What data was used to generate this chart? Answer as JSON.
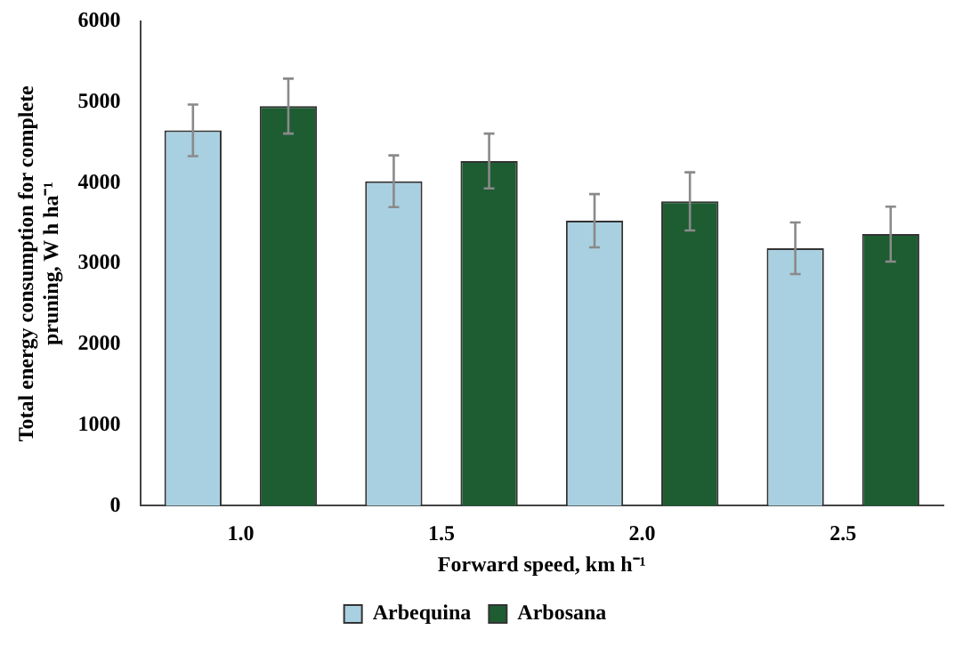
{
  "chart_data": {
    "type": "bar",
    "xlabel": "Forward speed, km h⁻¹",
    "ylabel": "Total energy consumption for complete pruning, W h ha⁻¹",
    "categories": [
      "1.0",
      "1.5",
      "2.0",
      "2.5"
    ],
    "series": [
      {
        "name": "Arbequina",
        "color": "#a9d0e0",
        "values": [
          4650,
          4020,
          3530,
          3190
        ],
        "errors": [
          320,
          320,
          330,
          320
        ]
      },
      {
        "name": "Arbosana",
        "color": "#1e5c32",
        "values": [
          4950,
          4270,
          3770,
          3365
        ],
        "errors": [
          340,
          340,
          360,
          340
        ]
      }
    ],
    "ylim": [
      0,
      6000
    ],
    "yticks": [
      0,
      1000,
      2000,
      3000,
      4000,
      5000,
      6000
    ],
    "grid": false,
    "legend": "bottom"
  }
}
